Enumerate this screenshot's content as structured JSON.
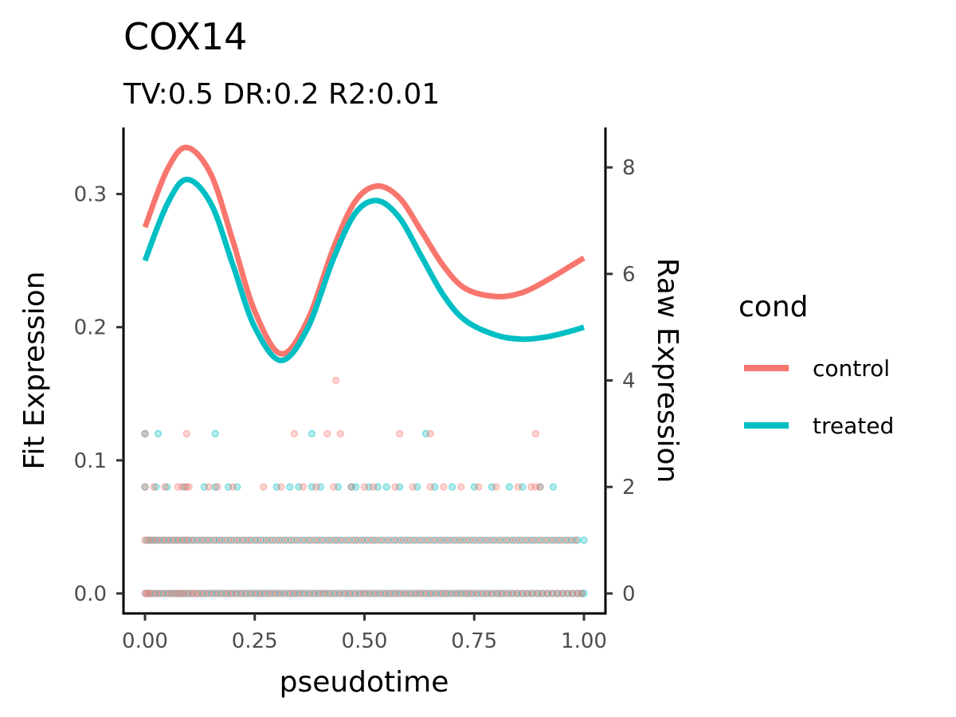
{
  "chart_data": {
    "type": "line",
    "title": "COX14",
    "subtitle": "TV:0.5 DR:0.2 R2:0.01",
    "xlabel": "pseudotime",
    "ylabel_left": "Fit Expression",
    "ylabel_right": "Raw Expression",
    "xlim": [
      0,
      1
    ],
    "ylim_left": [
      -0.015,
      0.35
    ],
    "ylim_right": [
      -0.375,
      8.75
    ],
    "x_ticks": [
      0,
      0.25,
      0.5,
      0.75,
      1
    ],
    "x_tick_labels": [
      "0.00",
      "0.25",
      "0.50",
      "0.75",
      "1.00"
    ],
    "y_left_ticks": [
      0,
      0.1,
      0.2,
      0.3
    ],
    "y_left_tick_labels": [
      "0.0",
      "0.1",
      "0.2",
      "0.3"
    ],
    "y_right_ticks": [
      0,
      2,
      4,
      6,
      8
    ],
    "y_right_tick_labels": [
      "0",
      "2",
      "4",
      "6",
      "8"
    ],
    "grid": false,
    "legend": {
      "title": "cond",
      "placement": "right"
    },
    "series": [
      {
        "name": "control",
        "color": "#F8766D",
        "x": [
          0,
          0.05,
          0.095,
          0.15,
          0.2,
          0.25,
          0.31,
          0.37,
          0.43,
          0.48,
          0.53,
          0.58,
          0.63,
          0.68,
          0.73,
          0.8,
          0.86,
          0.92,
          0.97,
          1.0
        ],
        "y": [
          0.275,
          0.318,
          0.335,
          0.315,
          0.265,
          0.212,
          0.18,
          0.205,
          0.26,
          0.295,
          0.306,
          0.297,
          0.272,
          0.246,
          0.229,
          0.223,
          0.226,
          0.236,
          0.246,
          0.252
        ]
      },
      {
        "name": "treated",
        "color": "#00BFC4",
        "x": [
          0,
          0.05,
          0.095,
          0.15,
          0.2,
          0.25,
          0.31,
          0.37,
          0.43,
          0.48,
          0.53,
          0.58,
          0.63,
          0.68,
          0.73,
          0.8,
          0.86,
          0.92,
          0.97,
          1.0
        ],
        "y": [
          0.25,
          0.292,
          0.311,
          0.293,
          0.247,
          0.2,
          0.175,
          0.199,
          0.252,
          0.286,
          0.295,
          0.282,
          0.253,
          0.224,
          0.205,
          0.194,
          0.191,
          0.193,
          0.197,
          0.2
        ]
      }
    ],
    "raw_points": {
      "opacity": 0.3,
      "control": [
        {
          "y": 0,
          "x": [
            0.0,
            0.005,
            0.009,
            0.018,
            0.027,
            0.037,
            0.048,
            0.057,
            0.066,
            0.075,
            0.083,
            0.09,
            0.1,
            0.109,
            0.116,
            0.125,
            0.135,
            0.146,
            0.157,
            0.168,
            0.18,
            0.19,
            0.2,
            0.211,
            0.222,
            0.233,
            0.245,
            0.256,
            0.267,
            0.279,
            0.29,
            0.301,
            0.313,
            0.325,
            0.336,
            0.347,
            0.358,
            0.37,
            0.382,
            0.394,
            0.405,
            0.416,
            0.428,
            0.44,
            0.451,
            0.463,
            0.474,
            0.486,
            0.497,
            0.508,
            0.52,
            0.531,
            0.543,
            0.554,
            0.566,
            0.577,
            0.589,
            0.6,
            0.612,
            0.623,
            0.634,
            0.646,
            0.657,
            0.669,
            0.68,
            0.691,
            0.703,
            0.714,
            0.726,
            0.737,
            0.748,
            0.759,
            0.771,
            0.782,
            0.793,
            0.805,
            0.816,
            0.828,
            0.839,
            0.85,
            0.862,
            0.873,
            0.884,
            0.896,
            0.907,
            0.918,
            0.93,
            0.941,
            0.952,
            0.964,
            0.975,
            0.986,
            0.995
          ]
        },
        {
          "y": 1,
          "x": [
            0.0,
            0.008,
            0.017,
            0.027,
            0.038,
            0.048,
            0.059,
            0.07,
            0.08,
            0.091,
            0.1,
            0.112,
            0.125,
            0.138,
            0.15,
            0.163,
            0.176,
            0.19,
            0.203,
            0.216,
            0.229,
            0.242,
            0.256,
            0.27,
            0.284,
            0.298,
            0.312,
            0.326,
            0.34,
            0.355,
            0.37,
            0.384,
            0.398,
            0.413,
            0.428,
            0.442,
            0.457,
            0.472,
            0.486,
            0.501,
            0.516,
            0.53,
            0.545,
            0.56,
            0.575,
            0.59,
            0.605,
            0.62,
            0.635,
            0.65,
            0.665,
            0.68,
            0.695,
            0.71,
            0.725,
            0.74,
            0.755,
            0.77,
            0.785,
            0.8,
            0.815,
            0.83,
            0.845,
            0.86,
            0.875,
            0.89,
            0.905,
            0.92,
            0.935,
            0.95,
            0.965,
            0.98
          ]
        },
        {
          "y": 2,
          "x": [
            0.0,
            0.02,
            0.045,
            0.075,
            0.085,
            0.095,
            0.1,
            0.145,
            0.165,
            0.2,
            0.27,
            0.31,
            0.36,
            0.39,
            0.43,
            0.47,
            0.5,
            0.52,
            0.57,
            0.61,
            0.65,
            0.68,
            0.72,
            0.76,
            0.8,
            0.85,
            0.88,
            0.89,
            0.9
          ]
        },
        {
          "y": 3,
          "x": [
            0.0,
            0.095,
            0.34,
            0.415,
            0.445,
            0.58,
            0.65,
            0.89
          ]
        },
        {
          "y": 4,
          "x": [
            0.435
          ]
        }
      ],
      "treated": [
        {
          "y": 0,
          "x": [
            0.002,
            0.012,
            0.022,
            0.032,
            0.042,
            0.052,
            0.062,
            0.071,
            0.08,
            0.089,
            0.098,
            0.107,
            0.12,
            0.13,
            0.141,
            0.152,
            0.163,
            0.174,
            0.185,
            0.196,
            0.207,
            0.218,
            0.229,
            0.24,
            0.251,
            0.262,
            0.273,
            0.284,
            0.296,
            0.307,
            0.318,
            0.33,
            0.341,
            0.352,
            0.364,
            0.375,
            0.387,
            0.398,
            0.41,
            0.421,
            0.433,
            0.444,
            0.456,
            0.467,
            0.479,
            0.49,
            0.502,
            0.513,
            0.525,
            0.536,
            0.548,
            0.559,
            0.571,
            0.582,
            0.594,
            0.605,
            0.617,
            0.628,
            0.64,
            0.651,
            0.663,
            0.674,
            0.686,
            0.697,
            0.709,
            0.72,
            0.732,
            0.743,
            0.755,
            0.766,
            0.778,
            0.789,
            0.801,
            0.812,
            0.824,
            0.835,
            0.847,
            0.858,
            0.87,
            0.881,
            0.893,
            0.904,
            0.916,
            0.927,
            0.939,
            0.95,
            0.962,
            0.973,
            0.985,
            0.995,
            1.0
          ]
        },
        {
          "y": 1,
          "x": [
            0.004,
            0.013,
            0.022,
            0.032,
            0.043,
            0.053,
            0.064,
            0.075,
            0.086,
            0.096,
            0.107,
            0.119,
            0.131,
            0.144,
            0.157,
            0.17,
            0.183,
            0.196,
            0.21,
            0.223,
            0.236,
            0.25,
            0.263,
            0.277,
            0.291,
            0.305,
            0.319,
            0.333,
            0.347,
            0.362,
            0.376,
            0.391,
            0.405,
            0.42,
            0.435,
            0.449,
            0.464,
            0.479,
            0.494,
            0.508,
            0.523,
            0.538,
            0.553,
            0.568,
            0.583,
            0.598,
            0.613,
            0.628,
            0.643,
            0.658,
            0.673,
            0.688,
            0.703,
            0.718,
            0.733,
            0.748,
            0.763,
            0.778,
            0.793,
            0.808,
            0.823,
            0.838,
            0.853,
            0.868,
            0.883,
            0.898,
            0.913,
            0.928,
            0.943,
            0.958,
            0.972,
            0.985,
            1.0
          ]
        },
        {
          "y": 2,
          "x": [
            0.0,
            0.025,
            0.05,
            0.09,
            0.135,
            0.16,
            0.19,
            0.21,
            0.3,
            0.33,
            0.35,
            0.38,
            0.4,
            0.44,
            0.47,
            0.48,
            0.51,
            0.53,
            0.55,
            0.58,
            0.62,
            0.66,
            0.7,
            0.75,
            0.79,
            0.83,
            0.86,
            0.9,
            0.93
          ]
        },
        {
          "y": 3,
          "x": [
            0.0,
            0.03,
            0.16,
            0.38,
            0.64
          ]
        }
      ]
    }
  }
}
